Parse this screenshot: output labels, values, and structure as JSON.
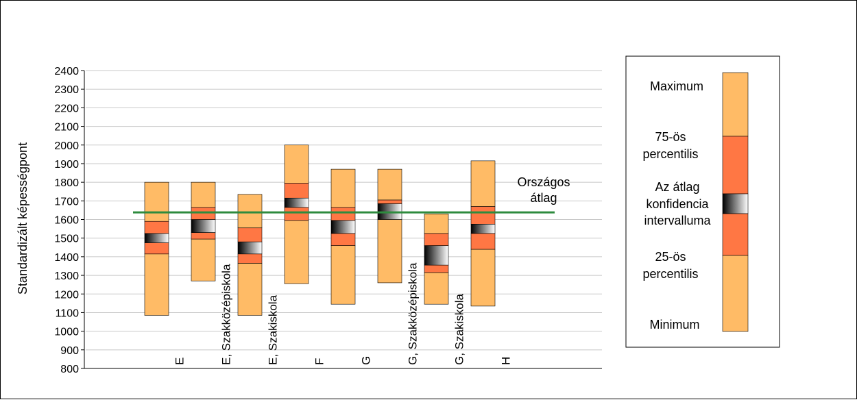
{
  "chart_data": {
    "type": "box",
    "ylabel": "Standardizált képességpont",
    "ylim": [
      800,
      2400
    ],
    "ytick_step": 100,
    "grid": true,
    "categories": [
      "E",
      "E, Szakközépiskola",
      "E, Szakiskola",
      "F",
      "G",
      "G, Szakközépiskola",
      "G, Szakiskola",
      "H"
    ],
    "series": [
      {
        "name": "E",
        "min": 1085,
        "p25": 1415,
        "ci_low": 1475,
        "ci_high": 1525,
        "p75": 1590,
        "max": 1800
      },
      {
        "name": "E, Szakközépiskola",
        "min": 1270,
        "p25": 1495,
        "ci_low": 1530,
        "ci_high": 1600,
        "p75": 1665,
        "max": 1800
      },
      {
        "name": "E, Szakiskola",
        "min": 1085,
        "p25": 1365,
        "ci_low": 1415,
        "ci_high": 1480,
        "p75": 1555,
        "max": 1735
      },
      {
        "name": "F",
        "min": 1255,
        "p25": 1595,
        "ci_low": 1665,
        "ci_high": 1715,
        "p75": 1795,
        "max": 2000
      },
      {
        "name": "G",
        "min": 1145,
        "p25": 1460,
        "ci_low": 1525,
        "ci_high": 1595,
        "p75": 1665,
        "max": 1870
      },
      {
        "name": "G, Szakközépiskola",
        "min": 1260,
        "p25": 1600,
        "ci_low": 1600,
        "ci_high": 1685,
        "p75": 1705,
        "max": 1870
      },
      {
        "name": "G, Szakiskola",
        "min": 1145,
        "p25": 1315,
        "ci_low": 1355,
        "ci_high": 1460,
        "p75": 1525,
        "max": 1630
      },
      {
        "name": "H",
        "min": 1135,
        "p25": 1440,
        "ci_low": 1525,
        "ci_high": 1575,
        "p75": 1670,
        "max": 1915
      }
    ],
    "reference_line": {
      "label_line1": "Országos",
      "label_line2": "átlag",
      "value": 1638,
      "color": "#2e8b3e"
    },
    "legend": {
      "position": "right",
      "maximum": "Maximum",
      "p75_line1": "75-ös",
      "p75_line2": "percentilis",
      "ci_line1": "Az átlag",
      "ci_line2": "konfidencia",
      "ci_line3": "intervalluma",
      "p25_line1": "25-ös",
      "p25_line2": "percentilis",
      "minimum": "Minimum"
    },
    "colors": {
      "outer": "#ffbb66",
      "inner": "#ff7744",
      "ci_dark": "#000000",
      "ci_light": "#ffffff",
      "grid": "#c8c8c8"
    }
  }
}
